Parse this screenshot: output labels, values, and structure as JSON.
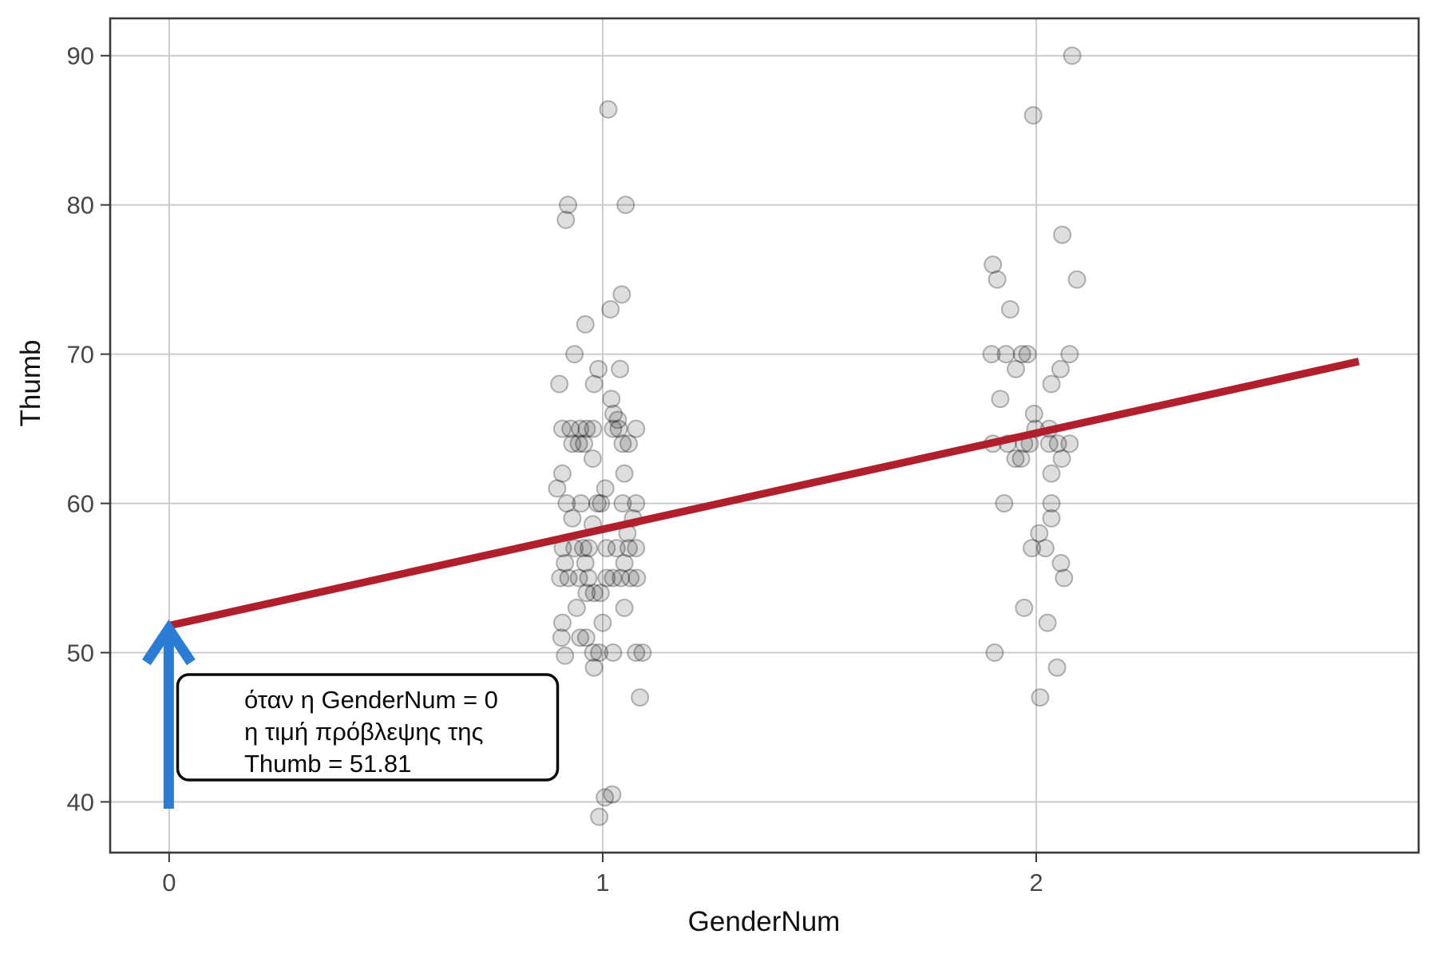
{
  "chart_data": {
    "type": "scatter",
    "title": "",
    "xlabel": "GenderNum",
    "ylabel": "Thumb",
    "x_ticks": [
      0,
      1,
      2
    ],
    "y_ticks": [
      40,
      50,
      60,
      70,
      80,
      90
    ],
    "xlim": [
      -0.136,
      2.882
    ],
    "ylim": [
      36.6,
      92.5
    ],
    "grid": true,
    "legend": "none",
    "point_style": {
      "radius": 10.5,
      "fill": "rgba(0,0,0,0.13)",
      "stroke": "rgba(0,0,0,0.28)",
      "stroke_width": 2
    },
    "points": [
      [
        1.013,
        86.4
      ],
      [
        0.92,
        80
      ],
      [
        1.053,
        80
      ],
      [
        0.915,
        79
      ],
      [
        1.044,
        74
      ],
      [
        1.018,
        73
      ],
      [
        0.96,
        72
      ],
      [
        0.935,
        70
      ],
      [
        0.99,
        69
      ],
      [
        1.04,
        69
      ],
      [
        0.9,
        68
      ],
      [
        0.98,
        68
      ],
      [
        1.02,
        67
      ],
      [
        1.025,
        66
      ],
      [
        1.035,
        65.6
      ],
      [
        0.907,
        65
      ],
      [
        0.926,
        65
      ],
      [
        0.948,
        65
      ],
      [
        0.963,
        65
      ],
      [
        0.978,
        65
      ],
      [
        1.024,
        65
      ],
      [
        1.037,
        65
      ],
      [
        1.077,
        65
      ],
      [
        0.93,
        64
      ],
      [
        0.945,
        64
      ],
      [
        0.957,
        64
      ],
      [
        1.046,
        64
      ],
      [
        1.06,
        64
      ],
      [
        0.977,
        63
      ],
      [
        0.907,
        62
      ],
      [
        1.05,
        62
      ],
      [
        0.895,
        61
      ],
      [
        1.006,
        61
      ],
      [
        0.917,
        60
      ],
      [
        0.95,
        60
      ],
      [
        0.988,
        60
      ],
      [
        0.996,
        60
      ],
      [
        1.046,
        60
      ],
      [
        1.077,
        60
      ],
      [
        0.93,
        59
      ],
      [
        1.07,
        59
      ],
      [
        0.977,
        58.6
      ],
      [
        1.057,
        58
      ],
      [
        0.908,
        57
      ],
      [
        0.935,
        57
      ],
      [
        0.955,
        57
      ],
      [
        0.968,
        57
      ],
      [
        1.009,
        57
      ],
      [
        1.032,
        57
      ],
      [
        1.06,
        57
      ],
      [
        1.077,
        57
      ],
      [
        0.913,
        56
      ],
      [
        0.96,
        56
      ],
      [
        1.05,
        56
      ],
      [
        0.902,
        55
      ],
      [
        0.921,
        55
      ],
      [
        0.945,
        55
      ],
      [
        0.967,
        55
      ],
      [
        1.009,
        55
      ],
      [
        1.024,
        55
      ],
      [
        1.042,
        55
      ],
      [
        1.064,
        55
      ],
      [
        1.079,
        55
      ],
      [
        0.963,
        54
      ],
      [
        0.98,
        54
      ],
      [
        0.995,
        54
      ],
      [
        0.94,
        53
      ],
      [
        1.05,
        53
      ],
      [
        0.907,
        52
      ],
      [
        1.0,
        52
      ],
      [
        0.905,
        51
      ],
      [
        0.948,
        51
      ],
      [
        0.962,
        51
      ],
      [
        0.978,
        50
      ],
      [
        0.992,
        50
      ],
      [
        1.024,
        50
      ],
      [
        1.077,
        50
      ],
      [
        1.092,
        50
      ],
      [
        0.913,
        49.8
      ],
      [
        0.98,
        49
      ],
      [
        1.086,
        47
      ],
      [
        1.005,
        40.3
      ],
      [
        1.022,
        40.5
      ],
      [
        0.992,
        39
      ],
      [
        2.083,
        90
      ],
      [
        1.993,
        86
      ],
      [
        2.06,
        78
      ],
      [
        1.9,
        76
      ],
      [
        1.91,
        75
      ],
      [
        2.094,
        75
      ],
      [
        1.94,
        73
      ],
      [
        1.897,
        70
      ],
      [
        1.93,
        70
      ],
      [
        1.967,
        70
      ],
      [
        1.98,
        70
      ],
      [
        2.077,
        70
      ],
      [
        1.953,
        69
      ],
      [
        2.056,
        69
      ],
      [
        2.035,
        68
      ],
      [
        1.917,
        67
      ],
      [
        1.995,
        66
      ],
      [
        1.998,
        65
      ],
      [
        2.03,
        65
      ],
      [
        1.9,
        64
      ],
      [
        1.934,
        64
      ],
      [
        1.972,
        64
      ],
      [
        1.985,
        64
      ],
      [
        2.03,
        64
      ],
      [
        2.05,
        64
      ],
      [
        2.077,
        64
      ],
      [
        1.952,
        63
      ],
      [
        1.965,
        63
      ],
      [
        2.059,
        63
      ],
      [
        2.035,
        62
      ],
      [
        1.926,
        60
      ],
      [
        2.035,
        60
      ],
      [
        2.035,
        59
      ],
      [
        2.007,
        58
      ],
      [
        1.99,
        57
      ],
      [
        2.021,
        57
      ],
      [
        2.057,
        56
      ],
      [
        2.064,
        55
      ],
      [
        1.972,
        53
      ],
      [
        2.026,
        52
      ],
      [
        1.904,
        50
      ],
      [
        2.048,
        49
      ],
      [
        2.009,
        47
      ]
    ],
    "regression_line": {
      "intercept": 51.81,
      "slope": 6.45,
      "x_start": 0,
      "x_end": 2.744,
      "color": "#B01F2B",
      "width": 9.5
    },
    "annotation": {
      "lines": [
        "όταν η GenderNum = 0",
        "η τιμή πρόβλεψης της",
        "Thumb = 51.81"
      ],
      "box_fill": "#ffffff",
      "box_border": "#0a0a0a",
      "arrow_color": "#2B7CD5",
      "arrow_points_to": {
        "x": 0,
        "y": 51.81
      }
    },
    "style_colors": {
      "grid": "#c8c8c8",
      "panel_border": "#3a3a3a",
      "background": "#ffffff"
    }
  }
}
